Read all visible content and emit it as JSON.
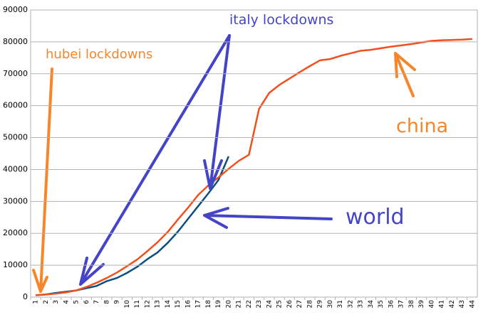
{
  "chart_data": {
    "type": "line",
    "categories": [
      1,
      2,
      3,
      4,
      5,
      6,
      7,
      8,
      9,
      10,
      11,
      12,
      13,
      14,
      15,
      16,
      17,
      18,
      19,
      20,
      21,
      22,
      23,
      24,
      25,
      26,
      27,
      28,
      29,
      30,
      31,
      32,
      33,
      34,
      35,
      36,
      37,
      38,
      39,
      40,
      41,
      42,
      43,
      44
    ],
    "series": [
      {
        "name": "china",
        "color": "#f0501e",
        "values": [
          580,
          800,
          1100,
          1500,
          2100,
          3200,
          4500,
          6000,
          7700,
          9700,
          11800,
          14400,
          17200,
          20400,
          24300,
          28000,
          32000,
          35000,
          37500,
          40200,
          42700,
          44600,
          59000,
          64000,
          66500,
          68500,
          70500,
          72400,
          74200,
          74600,
          75600,
          76400,
          77200,
          77500,
          78000,
          78500,
          78900,
          79300,
          79800,
          80300,
          80500,
          80600,
          80700,
          80900
        ]
      },
      {
        "name": "world",
        "color": "#0b4f80",
        "values": [
          580,
          850,
          1300,
          1700,
          2100,
          2800,
          3500,
          5000,
          6000,
          7600,
          9500,
          11900,
          14000,
          17000,
          20500,
          24500,
          28500,
          32500,
          36700,
          44100,
          null,
          null,
          null,
          null,
          null,
          null,
          null,
          null,
          null,
          null,
          null,
          null,
          null,
          null,
          null,
          null,
          null,
          null,
          null,
          null,
          null,
          null,
          null,
          null
        ]
      }
    ],
    "ylim": [
      0,
      90000
    ],
    "yticks": [
      0,
      10000,
      20000,
      30000,
      40000,
      50000,
      60000,
      70000,
      80000,
      90000
    ],
    "grid": true,
    "annotations": [
      "italy lockdowns",
      "hubei lockdowns",
      "china",
      "world"
    ]
  }
}
